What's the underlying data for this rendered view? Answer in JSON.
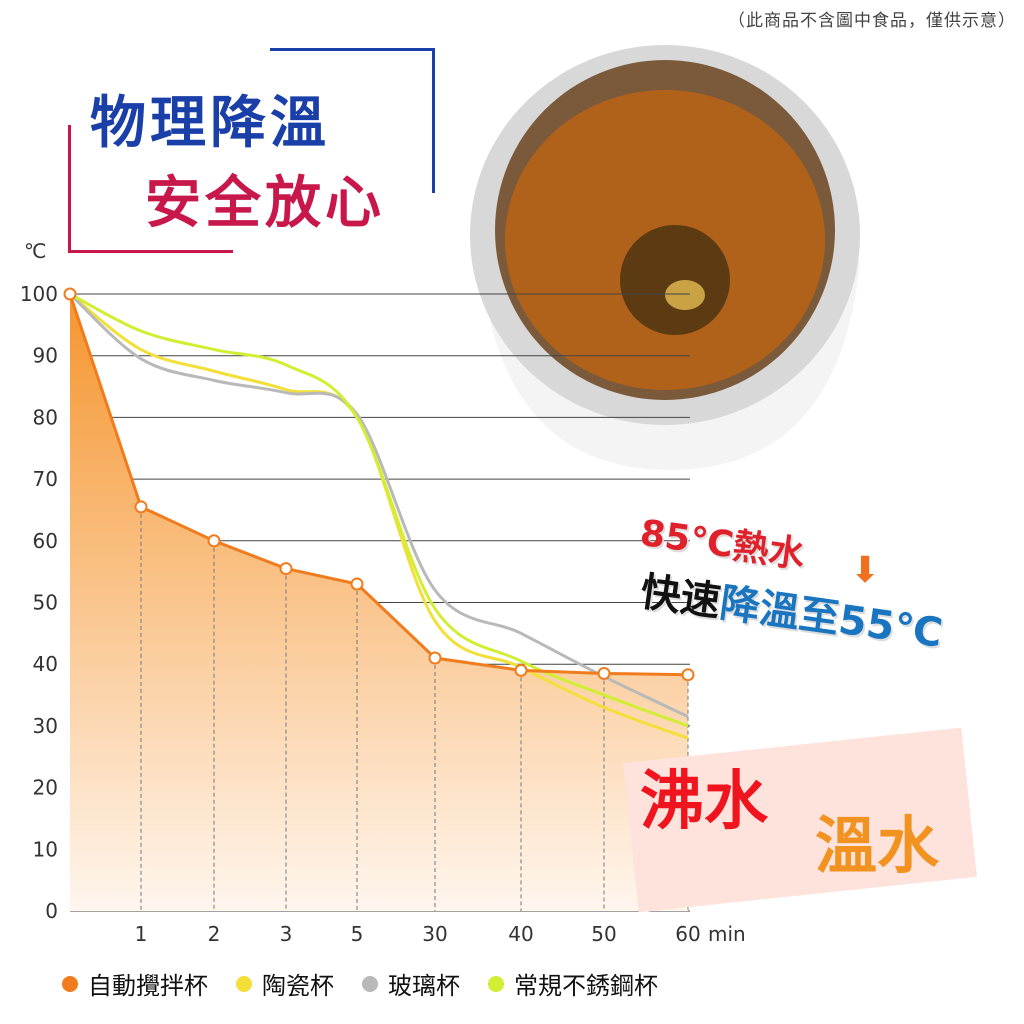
{
  "note": "（此商品不含圖中食品，僅供示意）",
  "headline": {
    "line1": "物理降溫",
    "line2": "安全放心"
  },
  "annotation": {
    "hot": "85℃熱水",
    "fast": "快速",
    "cool": "降溫至55℃"
  },
  "labels": {
    "boiling": "沸水",
    "warm": "溫水"
  },
  "colors": {
    "headline_blue": "#1a3fa8",
    "headline_red": "#c8174a"
  },
  "chart_data": {
    "type": "line",
    "ylabel": "℃",
    "xunit": "min",
    "categories": [
      "",
      "1",
      "2",
      "3",
      "5",
      "30",
      "40",
      "50",
      "60"
    ],
    "x": [
      0,
      1,
      2,
      3,
      5,
      30,
      40,
      50,
      60
    ],
    "yticks": [
      0,
      10,
      20,
      30,
      40,
      50,
      60,
      70,
      80,
      90,
      100
    ],
    "ylim": [
      0,
      100
    ],
    "grid": true,
    "legend_position": "bottom",
    "series": [
      {
        "name": "自動攪拌杯",
        "color": "#f07c1e",
        "area": true,
        "markers": true,
        "values": [
          100,
          65.5,
          60,
          55.5,
          53,
          41,
          39,
          38.5,
          38.3
        ]
      },
      {
        "name": "陶瓷杯",
        "color": "#f3df3a",
        "values": [
          100,
          91,
          87.5,
          84.5,
          80,
          47,
          39.5,
          33,
          28
        ]
      },
      {
        "name": "玻璃杯",
        "color": "#b9b9b9",
        "values": [
          100,
          89.5,
          86,
          84,
          80.5,
          52,
          45,
          38,
          31.5
        ]
      },
      {
        "name": "常規不銹鋼杯",
        "color": "#d2ee33",
        "values": [
          100,
          94,
          91,
          88.5,
          80,
          49,
          40.5,
          35,
          30
        ]
      }
    ]
  }
}
